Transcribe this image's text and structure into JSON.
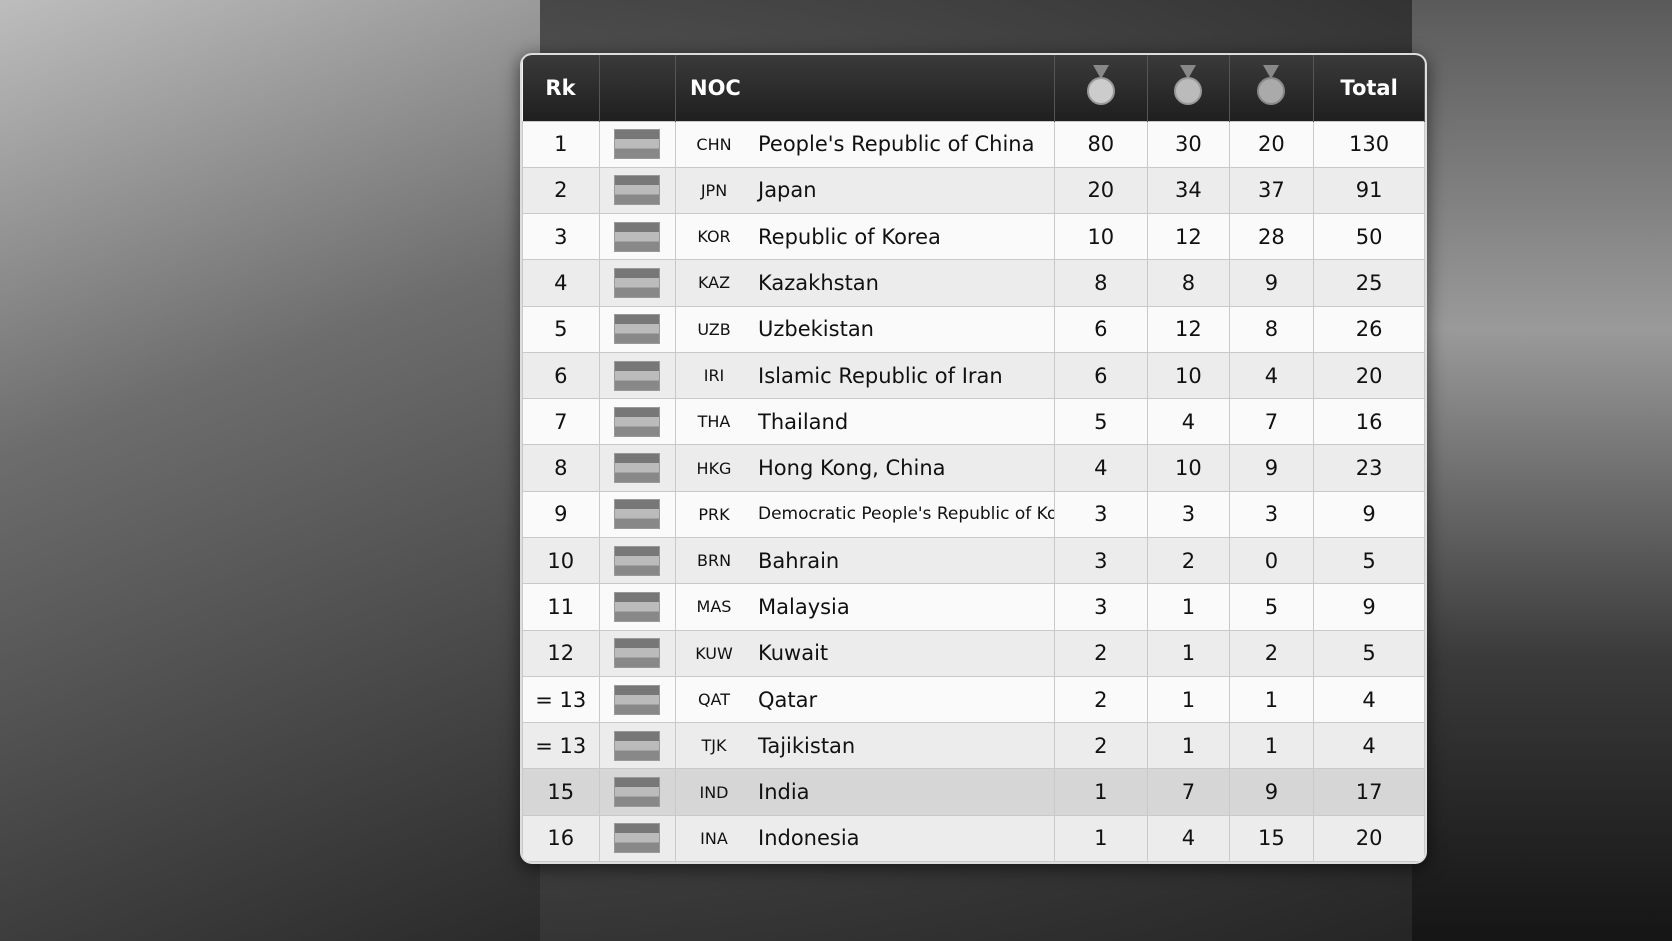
{
  "table": {
    "header": {
      "rank": "Rk",
      "noc": "NOC",
      "total": "Total"
    },
    "rows": [
      [
        "1",
        "CHN",
        "People's Republic of China",
        80,
        30,
        20,
        130
      ],
      [
        "2",
        "JPN",
        "Japan",
        20,
        34,
        37,
        91
      ],
      [
        "3",
        "KOR",
        "Republic of Korea",
        10,
        12,
        28,
        50
      ],
      [
        "4",
        "KAZ",
        "Kazakhstan",
        8,
        8,
        9,
        25
      ],
      [
        "5",
        "UZB",
        "Uzbekistan",
        6,
        12,
        8,
        26
      ],
      [
        "6",
        "IRI",
        "Islamic Republic of Iran",
        6,
        10,
        4,
        20
      ],
      [
        "7",
        "THA",
        "Thailand",
        5,
        4,
        7,
        16
      ],
      [
        "8",
        "HKG",
        "Hong Kong, China",
        4,
        10,
        9,
        23
      ],
      [
        "9",
        "PRK",
        "Democratic People's Republic of Korea",
        3,
        3,
        3,
        9
      ],
      [
        "10",
        "BRN",
        "Bahrain",
        3,
        2,
        0,
        5
      ],
      [
        "11",
        "MAS",
        "Malaysia",
        3,
        1,
        5,
        9
      ],
      [
        "12",
        "KUW",
        "Kuwait",
        2,
        1,
        2,
        5
      ],
      [
        "= 13",
        "QAT",
        "Qatar",
        2,
        1,
        1,
        4
      ],
      [
        "= 13",
        "TJK",
        "Tajikistan",
        2,
        1,
        1,
        4
      ],
      [
        "15",
        "IND",
        "India",
        1,
        7,
        9,
        17
      ],
      [
        "16",
        "INA",
        "Indonesia",
        1,
        4,
        15,
        20
      ]
    ]
  }
}
